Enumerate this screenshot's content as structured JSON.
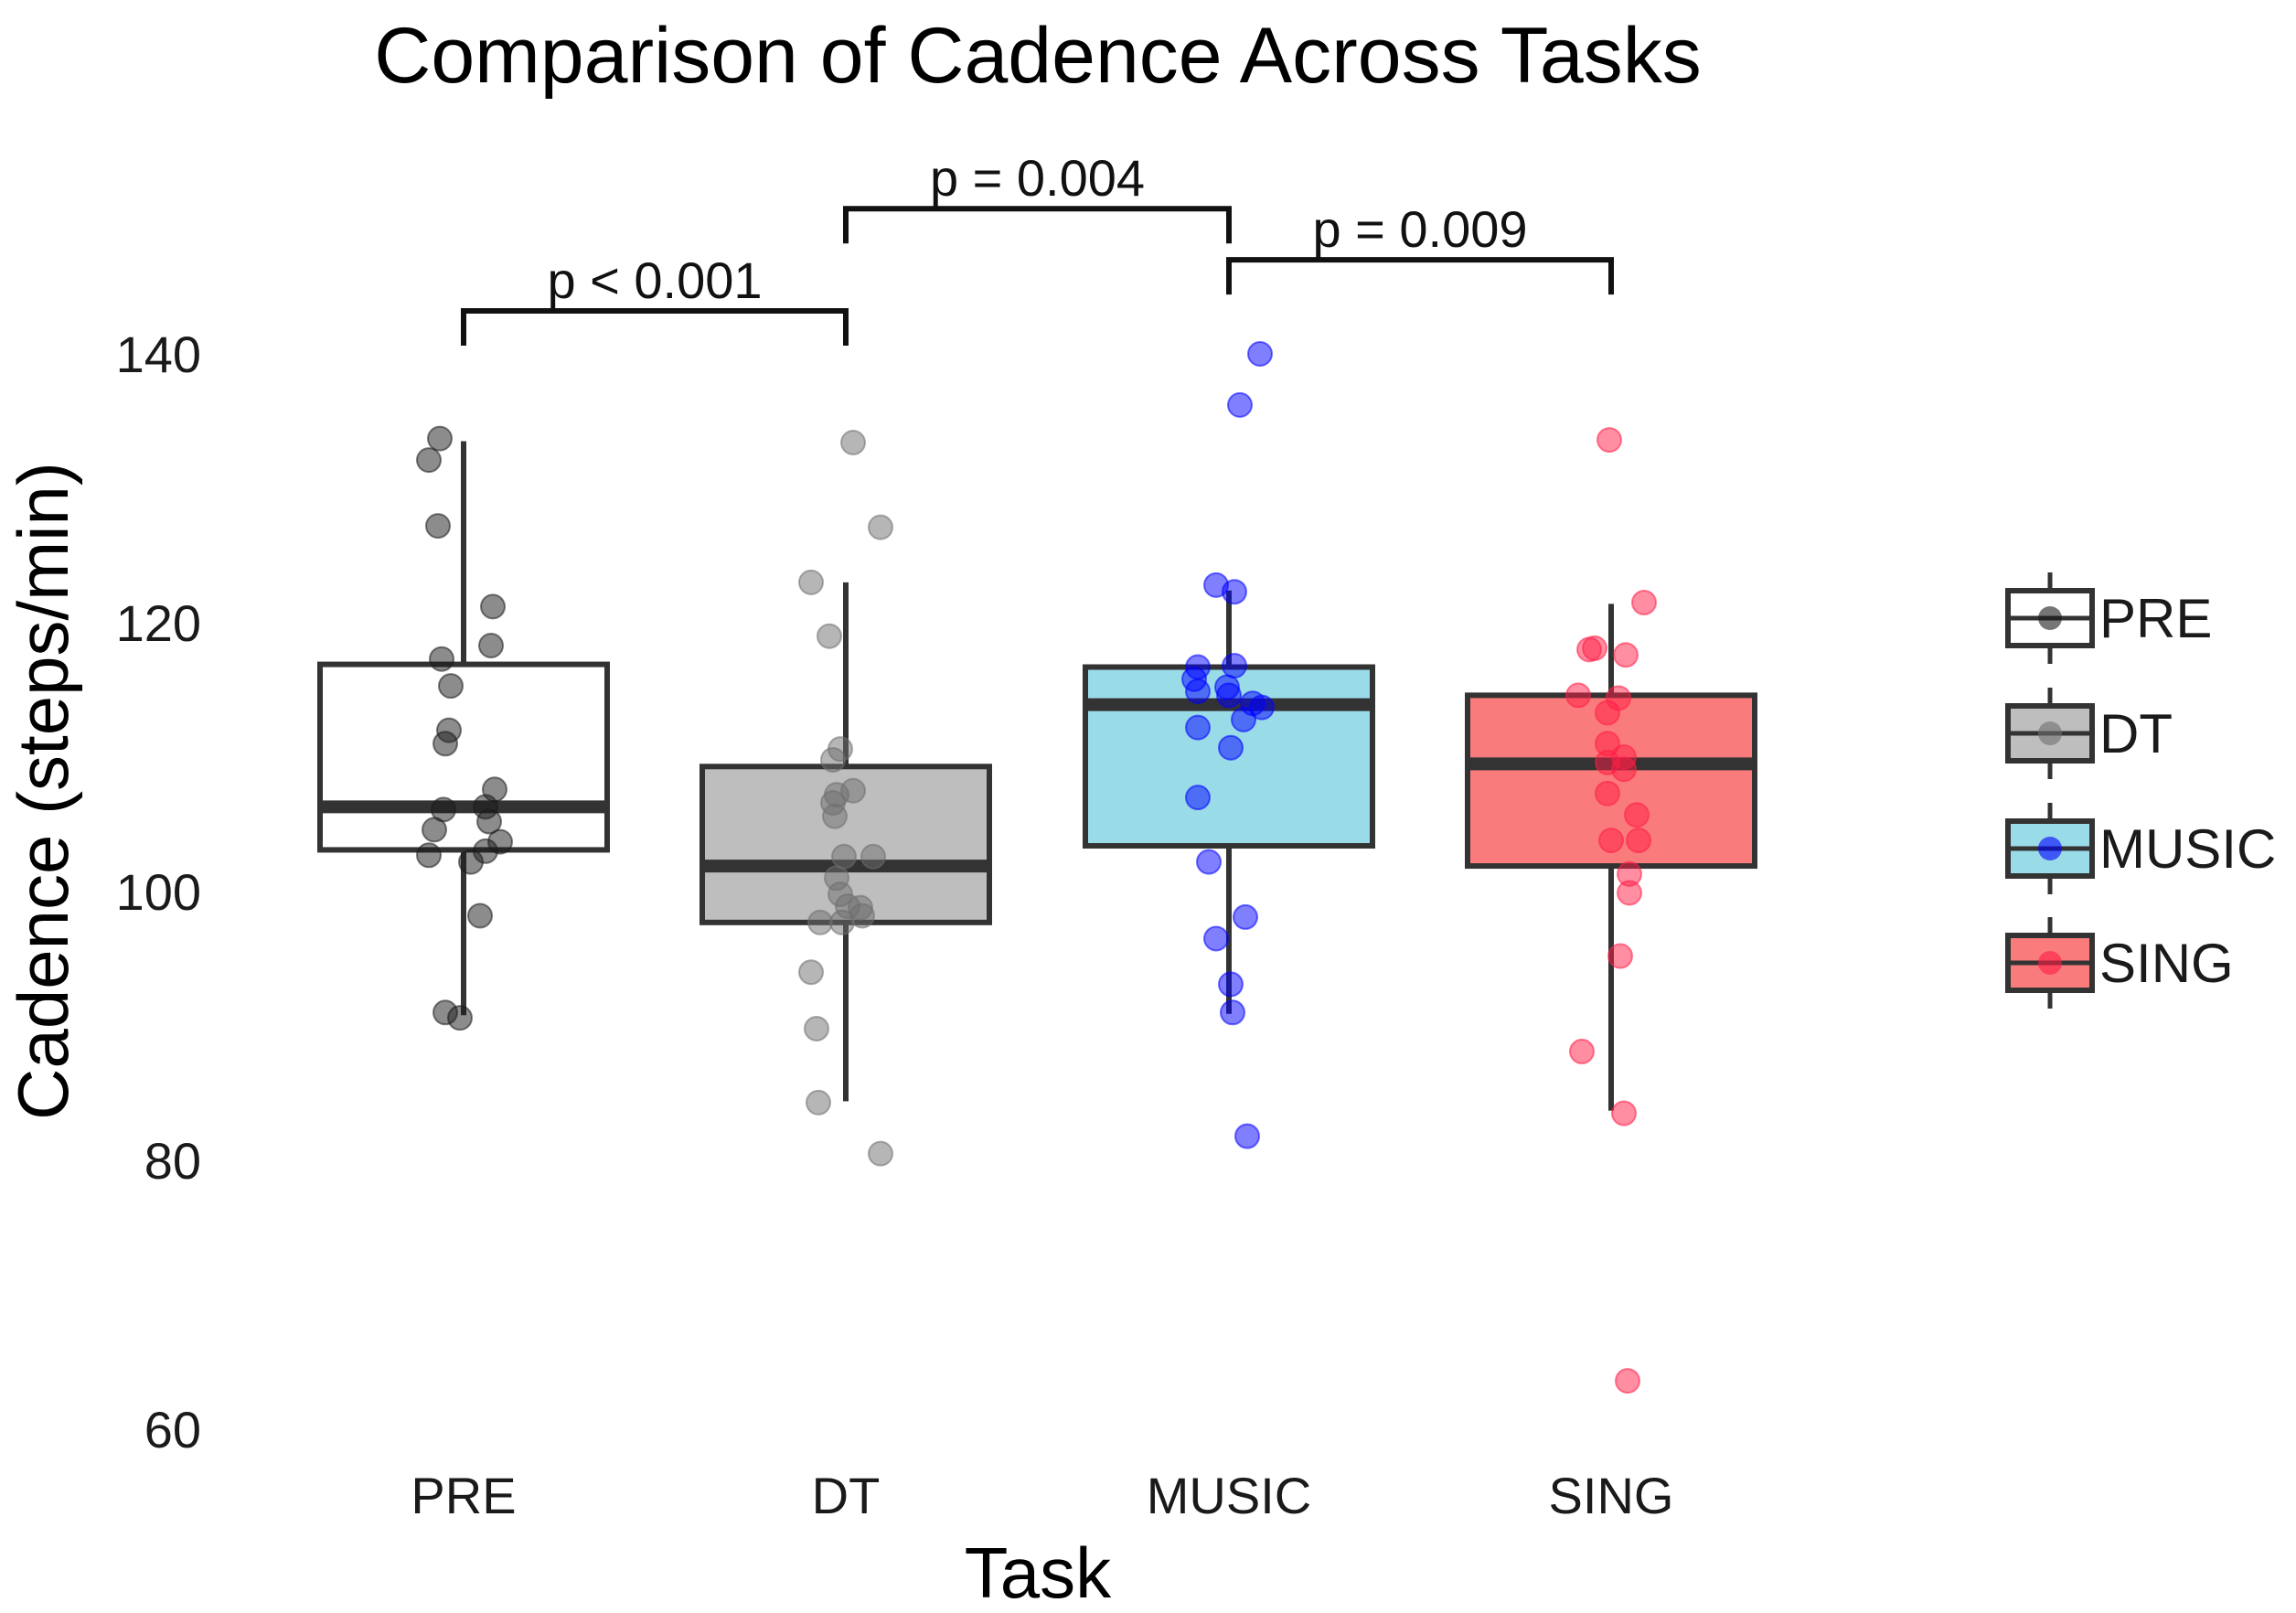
{
  "chart_data": {
    "type": "box",
    "title": "Comparison of Cadence Across Tasks",
    "xlabel": "Task",
    "ylabel": "Cadence (steps/min)",
    "categories": [
      "PRE",
      "DT",
      "MUSIC",
      "SING"
    ],
    "ylim": [
      58.5,
      147
    ],
    "yticks": [
      60,
      80,
      100,
      120,
      140
    ],
    "boxes": [
      {
        "name": "PRE",
        "color": "#ffffff",
        "point_color": "#1a1a1a",
        "whisker_low": 90.8,
        "q1": 103.1,
        "median": 106.3,
        "q3": 116.9,
        "whisker_high": 133.5
      },
      {
        "name": "DT",
        "color": "#bebebe",
        "point_color": "#6e6e6e",
        "whisker_low": 84.4,
        "q1": 97.7,
        "median": 101.9,
        "q3": 109.3,
        "whisker_high": 123.0
      },
      {
        "name": "MUSIC",
        "color": "#9adbe8",
        "point_color": "#0000ff",
        "whisker_low": 90.9,
        "q1": 103.4,
        "median": 113.9,
        "q3": 116.7,
        "whisker_high": 122.4
      },
      {
        "name": "SING",
        "color": "#fa7b7b",
        "point_color": "#ff1e46",
        "whisker_low": 83.7,
        "q1": 101.9,
        "median": 109.5,
        "q3": 114.6,
        "whisker_high": 121.4
      }
    ],
    "points": {
      "PRE": [
        [
          -0.19,
          132.1
        ],
        [
          -0.13,
          133.7
        ],
        [
          -0.14,
          127.2
        ],
        [
          0.16,
          121.2
        ],
        [
          0.15,
          118.3
        ],
        [
          -0.12,
          117.3
        ],
        [
          -0.07,
          115.3
        ],
        [
          -0.08,
          112.0
        ],
        [
          -0.1,
          111.0
        ],
        [
          0.17,
          107.6
        ],
        [
          -0.11,
          106.1
        ],
        [
          0.12,
          106.3
        ],
        [
          0.14,
          105.2
        ],
        [
          -0.16,
          104.6
        ],
        [
          0.2,
          103.7
        ],
        [
          0.12,
          103.0
        ],
        [
          -0.19,
          102.7
        ],
        [
          0.04,
          102.2
        ],
        [
          0.09,
          98.2
        ],
        [
          -0.1,
          91.0
        ],
        [
          -0.02,
          90.6
        ]
      ],
      "DT": [
        [
          0.04,
          133.4
        ],
        [
          0.19,
          127.1
        ],
        [
          -0.19,
          123.0
        ],
        [
          -0.09,
          119.0
        ],
        [
          -0.03,
          110.6
        ],
        [
          -0.07,
          109.8
        ],
        [
          -0.05,
          107.2
        ],
        [
          0.04,
          107.5
        ],
        [
          -0.07,
          106.6
        ],
        [
          -0.06,
          105.6
        ],
        [
          -0.01,
          102.6
        ],
        [
          0.15,
          102.6
        ],
        [
          -0.05,
          101.0
        ],
        [
          -0.03,
          99.8
        ],
        [
          0.01,
          98.9
        ],
        [
          0.08,
          98.8
        ],
        [
          0.09,
          98.2
        ],
        [
          -0.14,
          97.7
        ],
        [
          -0.02,
          97.7
        ],
        [
          -0.19,
          94.0
        ],
        [
          -0.16,
          89.8
        ],
        [
          -0.15,
          84.3
        ],
        [
          0.19,
          80.5
        ]
      ],
      "MUSIC": [
        [
          0.17,
          140.0
        ],
        [
          0.06,
          136.2
        ],
        [
          -0.07,
          122.8
        ],
        [
          0.03,
          122.3
        ],
        [
          -0.17,
          116.7
        ],
        [
          0.03,
          116.8
        ],
        [
          -0.19,
          115.8
        ],
        [
          -0.17,
          114.9
        ],
        [
          -0.01,
          115.2
        ],
        [
          0.0,
          114.6
        ],
        [
          0.13,
          114.0
        ],
        [
          0.18,
          113.7
        ],
        [
          0.08,
          112.8
        ],
        [
          -0.17,
          112.2
        ],
        [
          0.01,
          110.7
        ],
        [
          -0.17,
          107.0
        ],
        [
          -0.11,
          102.2
        ],
        [
          0.09,
          98.1
        ],
        [
          -0.07,
          96.5
        ],
        [
          0.01,
          93.1
        ],
        [
          0.02,
          91.0
        ],
        [
          0.1,
          81.8
        ]
      ],
      "SING": [
        [
          -0.01,
          133.6
        ],
        [
          0.18,
          121.5
        ],
        [
          -0.12,
          118.0
        ],
        [
          -0.09,
          118.1
        ],
        [
          0.08,
          117.6
        ],
        [
          -0.18,
          114.6
        ],
        [
          0.04,
          114.4
        ],
        [
          -0.02,
          113.3
        ],
        [
          -0.02,
          111.0
        ],
        [
          0.07,
          110.0
        ],
        [
          -0.02,
          109.6
        ],
        [
          0.07,
          109.1
        ],
        [
          -0.02,
          107.3
        ],
        [
          0.14,
          105.7
        ],
        [
          0.15,
          103.8
        ],
        [
          0.0,
          103.8
        ],
        [
          0.1,
          101.3
        ],
        [
          0.1,
          99.9
        ],
        [
          0.05,
          95.2
        ],
        [
          -0.16,
          88.1
        ],
        [
          0.07,
          83.5
        ],
        [
          0.09,
          63.6
        ]
      ]
    },
    "significance": [
      {
        "from": "PRE",
        "to": "DT",
        "y": 143.2,
        "label": "p < 0.001"
      },
      {
        "from": "DT",
        "to": "MUSIC",
        "y": 150.8,
        "label": "p = 0.004"
      },
      {
        "from": "MUSIC",
        "to": "SING",
        "y": 147.0,
        "label": "p = 0.009"
      }
    ],
    "legend": {
      "position": "right",
      "items": [
        {
          "label": "PRE",
          "color": "#ffffff",
          "point_color": "#1a1a1a"
        },
        {
          "label": "DT",
          "color": "#bebebe",
          "point_color": "#6e6e6e"
        },
        {
          "label": "MUSIC",
          "color": "#9adbe8",
          "point_color": "#0000ff"
        },
        {
          "label": "SING",
          "color": "#fa7b7b",
          "point_color": "#ff1e46"
        }
      ]
    },
    "grid": false
  }
}
